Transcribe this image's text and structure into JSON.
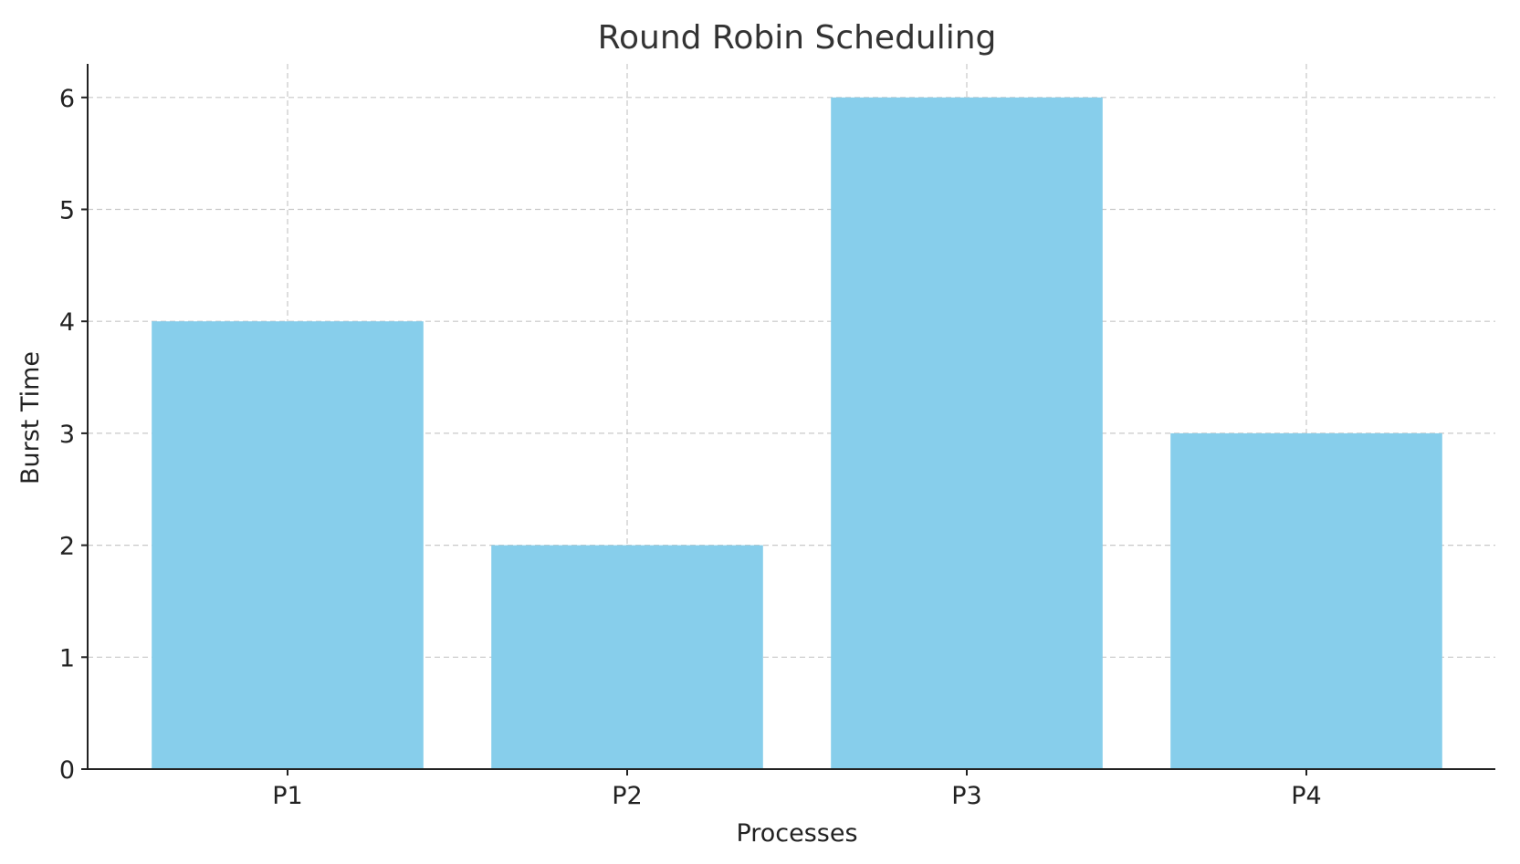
{
  "chart_data": {
    "type": "bar",
    "title": "Round Robin Scheduling",
    "xlabel": "Processes",
    "ylabel": "Burst Time",
    "categories": [
      "P1",
      "P2",
      "P3",
      "P4"
    ],
    "values": [
      4,
      2,
      6,
      3
    ],
    "ylim": [
      0,
      6.3
    ],
    "yticks": [
      0,
      1,
      2,
      3,
      4,
      5,
      6
    ],
    "grid": true,
    "legend": "none",
    "colors": {
      "bar": "#87CEEB",
      "axis": "#222222",
      "grid": "#c8c8c8",
      "title": "#333333"
    }
  }
}
